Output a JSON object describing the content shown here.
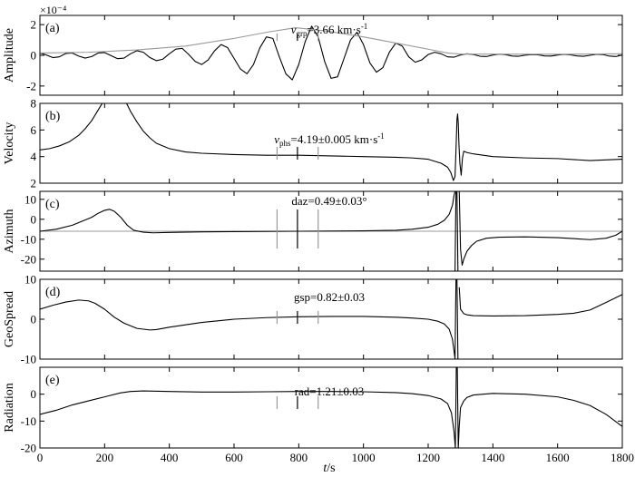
{
  "figure": {
    "exponent_label": "×10⁻⁴",
    "xlabel_var": "t",
    "xlabel_unit": "/s"
  },
  "chart_data": [
    {
      "type": "line",
      "panel": "(a)",
      "ylabel": "Amplitude",
      "xlim": [
        0,
        1800
      ],
      "ylim": [
        -2.6,
        2.6
      ],
      "yticks": [
        -2,
        0,
        2
      ],
      "xticks": [
        0,
        200,
        400,
        600,
        800,
        1000,
        1200,
        1400,
        1600,
        1800
      ],
      "annotation": {
        "prefix": "v",
        "sub": "grp",
        "text": "=3.66 km·s",
        "sup": "-1"
      },
      "series": [
        {
          "role": "waveform",
          "color": "#000000",
          "x": [
            0,
            20,
            40,
            60,
            80,
            100,
            120,
            140,
            160,
            180,
            200,
            220,
            240,
            260,
            280,
            300,
            320,
            340,
            360,
            380,
            400,
            420,
            440,
            460,
            480,
            500,
            520,
            540,
            560,
            580,
            600,
            620,
            640,
            660,
            680,
            700,
            720,
            740,
            760,
            780,
            800,
            820,
            840,
            860,
            880,
            900,
            920,
            940,
            960,
            980,
            1000,
            1020,
            1040,
            1060,
            1080,
            1100,
            1120,
            1140,
            1160,
            1180,
            1200,
            1220,
            1240,
            1260,
            1280,
            1300,
            1320,
            1340,
            1360,
            1380,
            1400,
            1420,
            1440,
            1460,
            1480,
            1500,
            1520,
            1540,
            1560,
            1580,
            1600,
            1620,
            1640,
            1660,
            1680,
            1700,
            1720,
            1740,
            1760,
            1780,
            1800
          ],
          "y": [
            0.15,
            0.02,
            -0.15,
            -0.1,
            0.12,
            0.15,
            -0.05,
            -0.18,
            -0.08,
            0.15,
            0.18,
            -0.02,
            -0.22,
            -0.18,
            0.1,
            0.3,
            0.2,
            -0.15,
            -0.35,
            -0.25,
            0.1,
            0.4,
            0.45,
            0.05,
            -0.4,
            -0.6,
            -0.3,
            0.3,
            0.7,
            0.5,
            -0.2,
            -0.9,
            -1.2,
            -0.6,
            0.5,
            1.2,
            1.1,
            -0.1,
            -1.2,
            -1.6,
            -0.6,
            0.9,
            1.9,
            1.2,
            -0.4,
            -1.5,
            -1.4,
            -0.2,
            1.0,
            1.5,
            0.7,
            -0.5,
            -1.1,
            -0.8,
            0.2,
            0.8,
            0.6,
            -0.1,
            -0.45,
            -0.3,
            0.05,
            0.2,
            0.1,
            -0.1,
            -0.12,
            0.02,
            0.1,
            0.05,
            -0.06,
            -0.08,
            0.02,
            0.08,
            0.04,
            -0.05,
            -0.06,
            0.01,
            0.05,
            0.03,
            -0.04,
            -0.05,
            0.02,
            0.06,
            0.03,
            -0.04,
            -0.06,
            0.0,
            0.07,
            0.05,
            -0.05,
            -0.08,
            0.02
          ]
        },
        {
          "role": "envelope",
          "color": "#999999",
          "x": [
            0,
            150,
            300,
            450,
            600,
            700,
            790,
            880,
            1000,
            1100,
            1200,
            1260,
            1300,
            1400,
            1600,
            1800
          ],
          "y": [
            0.15,
            0.2,
            0.35,
            0.6,
            1.1,
            1.5,
            1.8,
            1.6,
            1.2,
            0.8,
            0.4,
            0.15,
            0.08,
            0.08,
            0.07,
            0.1
          ]
        }
      ],
      "markers": {
        "gray": [
          733,
          860
        ],
        "black": [
          796
        ]
      }
    },
    {
      "type": "line",
      "panel": "(b)",
      "ylabel": "Velocity",
      "xlim": [
        0,
        1800
      ],
      "ylim": [
        2,
        8
      ],
      "yticks": [
        2,
        4,
        6,
        8
      ],
      "annotation": {
        "prefix": "v",
        "sub": "phs",
        "text": "=4.19±0.005 km·s",
        "sup": "-1"
      },
      "series": [
        {
          "role": "curve",
          "color": "#000000",
          "x": [
            0,
            30,
            60,
            90,
            120,
            140,
            160,
            180,
            190,
            200,
            260,
            270,
            280,
            300,
            320,
            340,
            360,
            400,
            450,
            500,
            600,
            700,
            800,
            900,
            1000,
            1100,
            1150,
            1200,
            1240,
            1260,
            1270,
            1278,
            1283,
            1286,
            1289,
            1291,
            1293,
            1295,
            1298,
            1302,
            1306,
            1310,
            1320,
            1340,
            1400,
            1500,
            1600,
            1700,
            1750,
            1800
          ],
          "y": [
            4.5,
            4.6,
            4.8,
            5.1,
            5.6,
            6.1,
            6.7,
            7.5,
            7.9,
            8.3,
            8.3,
            7.9,
            7.4,
            6.6,
            5.9,
            5.4,
            5.0,
            4.6,
            4.35,
            4.25,
            4.15,
            4.1,
            4.1,
            4.05,
            4.0,
            3.95,
            3.9,
            3.8,
            3.5,
            3.2,
            2.8,
            2.2,
            2.5,
            4.5,
            6.8,
            7.2,
            6.5,
            5.0,
            3.5,
            2.6,
            3.9,
            4.4,
            4.3,
            4.2,
            4.0,
            3.9,
            3.85,
            3.7,
            3.75,
            3.8
          ]
        }
      ],
      "markers": {
        "gray": [
          733,
          860
        ],
        "black": [
          796
        ]
      }
    },
    {
      "type": "line",
      "panel": "(c)",
      "ylabel": "Azimuth",
      "xlim": [
        0,
        1800
      ],
      "ylim": [
        -26,
        14
      ],
      "yticks": [
        -20,
        -10,
        0,
        10
      ],
      "annotation": {
        "text": "daz=0.49±0.03°"
      },
      "reference_line": {
        "y": -6,
        "color": "#999999"
      },
      "series": [
        {
          "role": "curve",
          "color": "#000000",
          "x": [
            0,
            50,
            100,
            130,
            160,
            180,
            200,
            215,
            230,
            250,
            270,
            290,
            320,
            350,
            400,
            500,
            600,
            700,
            800,
            900,
            1000,
            1100,
            1150,
            1200,
            1230,
            1250,
            1265,
            1275,
            1280,
            1283
          ],
          "y": [
            -6,
            -5,
            -3,
            -1,
            1,
            3,
            4.5,
            5,
            4,
            1,
            -3,
            -5.5,
            -6.5,
            -6.8,
            -6.6,
            -6.3,
            -6.2,
            -6.1,
            -6.0,
            -5.9,
            -5.8,
            -5.5,
            -5.0,
            -4.0,
            -2.5,
            -0.5,
            2.5,
            7,
            12,
            14
          ]
        },
        {
          "role": "curve",
          "color": "#000000",
          "x": [
            1283,
            1286,
            1289,
            1292
          ],
          "y": [
            -26,
            14,
            14,
            -26
          ]
        },
        {
          "role": "curve",
          "color": "#000000",
          "x": [
            1296,
            1300,
            1305,
            1310,
            1320,
            1335,
            1350,
            1380,
            1420,
            1500,
            1600,
            1700,
            1750,
            1780,
            1800
          ],
          "y": [
            14,
            -15,
            -23,
            -20,
            -16,
            -13,
            -11,
            -9.5,
            -9,
            -8.8,
            -9.2,
            -10.2,
            -9.5,
            -8,
            -6
          ]
        }
      ],
      "markers": {
        "gray": [
          733,
          860
        ],
        "black": [
          796
        ]
      }
    },
    {
      "type": "line",
      "panel": "(d)",
      "ylabel": "GeoSpread",
      "xlim": [
        0,
        1800
      ],
      "ylim": [
        -10,
        10
      ],
      "yticks": [
        -10,
        0,
        10
      ],
      "annotation": {
        "text": "gsp=0.82±0.03"
      },
      "series": [
        {
          "role": "curve",
          "color": "#000000",
          "x": [
            0,
            40,
            80,
            120,
            150,
            170,
            200,
            230,
            260,
            300,
            340,
            360,
            400,
            500,
            600,
            700,
            800,
            900,
            1000,
            1100,
            1150,
            1200,
            1230,
            1250,
            1265,
            1275,
            1280,
            1283,
            1286,
            1289,
            1292
          ],
          "y": [
            2.5,
            3.5,
            4.3,
            4.8,
            4.6,
            4.0,
            2.5,
            0.5,
            -1.0,
            -2.3,
            -2.7,
            -2.6,
            -2.0,
            -0.8,
            0.0,
            0.4,
            0.6,
            0.7,
            0.7,
            0.5,
            0.3,
            0.0,
            -0.5,
            -1.2,
            -2.5,
            -5,
            -8,
            -10,
            10,
            10,
            -10
          ]
        },
        {
          "role": "curve",
          "color": "#000000",
          "x": [
            1296,
            1300,
            1310,
            1320,
            1340,
            1400,
            1500,
            1600,
            1650,
            1700,
            1750,
            1800
          ],
          "y": [
            8,
            2.5,
            1.4,
            1.1,
            0.9,
            0.8,
            0.9,
            1.2,
            1.5,
            2.3,
            4.2,
            6.2
          ]
        }
      ],
      "markers": {
        "gray": [
          733,
          860
        ],
        "black": [
          796
        ]
      }
    },
    {
      "type": "line",
      "panel": "(e)",
      "ylabel": "Radiation",
      "xlim": [
        0,
        1800
      ],
      "ylim": [
        -20,
        10
      ],
      "yticks": [
        -20,
        -10,
        0
      ],
      "annotation": {
        "text": "rad=1.21±0.03"
      },
      "series": [
        {
          "role": "curve",
          "color": "#000000",
          "x": [
            0,
            50,
            100,
            150,
            200,
            250,
            280,
            320,
            400,
            500,
            600,
            700,
            800,
            900,
            1000,
            1100,
            1150,
            1200,
            1240,
            1260,
            1272,
            1280,
            1284,
            1287,
            1290,
            1293,
            1296,
            1300,
            1310,
            1320,
            1340,
            1400,
            1500,
            1600,
            1650,
            1700,
            1750,
            1800
          ],
          "y": [
            -7.5,
            -6,
            -4,
            -2.5,
            -1,
            0.5,
            1,
            1.2,
            1.0,
            0.8,
            0.8,
            0.9,
            1.0,
            1.0,
            0.9,
            0.6,
            0.2,
            -0.5,
            -1.8,
            -3.5,
            -7,
            -14,
            -20,
            10,
            10,
            -20,
            -12,
            -5,
            -2.5,
            -1.2,
            -0.3,
            0.3,
            0.0,
            -1.0,
            -2.3,
            -4.2,
            -7.5,
            -12
          ]
        }
      ],
      "markers": {
        "gray": [
          733,
          860
        ],
        "black": [
          796
        ]
      }
    }
  ]
}
